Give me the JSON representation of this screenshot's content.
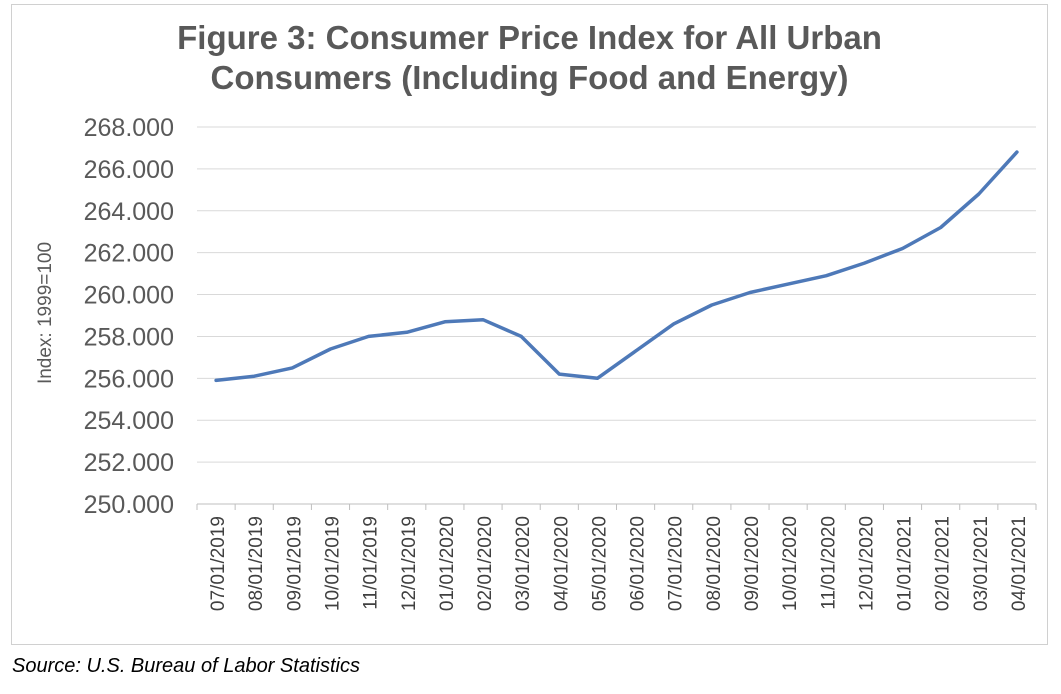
{
  "chart_data": {
    "type": "line",
    "title": [
      "Figure 3: Consumer Price Index for All Urban",
      "Consumers (Including Food and Energy)"
    ],
    "xlabel": "",
    "ylabel": "Index: 1999=100",
    "ylim": [
      250,
      268
    ],
    "yticks": [
      "250.000",
      "252.000",
      "254.000",
      "256.000",
      "258.000",
      "260.000",
      "262.000",
      "264.000",
      "266.000",
      "268.000"
    ],
    "categories": [
      "07/01/2019",
      "08/01/2019",
      "09/01/2019",
      "10/01/2019",
      "11/01/2019",
      "12/01/2019",
      "01/01/2020",
      "02/01/2020",
      "03/01/2020",
      "04/01/2020",
      "05/01/2020",
      "06/01/2020",
      "07/01/2020",
      "08/01/2020",
      "09/01/2020",
      "10/01/2020",
      "11/01/2020",
      "12/01/2020",
      "01/01/2021",
      "02/01/2021",
      "03/01/2021",
      "04/01/2021"
    ],
    "series": [
      {
        "values": [
          255.9,
          256.1,
          256.5,
          257.4,
          258.0,
          258.2,
          258.7,
          258.8,
          258.0,
          256.2,
          256.0,
          257.3,
          258.6,
          259.5,
          260.1,
          260.5,
          260.9,
          261.5,
          262.2,
          263.2,
          264.8,
          266.8
        ],
        "color": "#4e79b8"
      }
    ],
    "grid": true,
    "legend": "none"
  },
  "source": "Source: U.S. Bureau of Labor Statistics"
}
